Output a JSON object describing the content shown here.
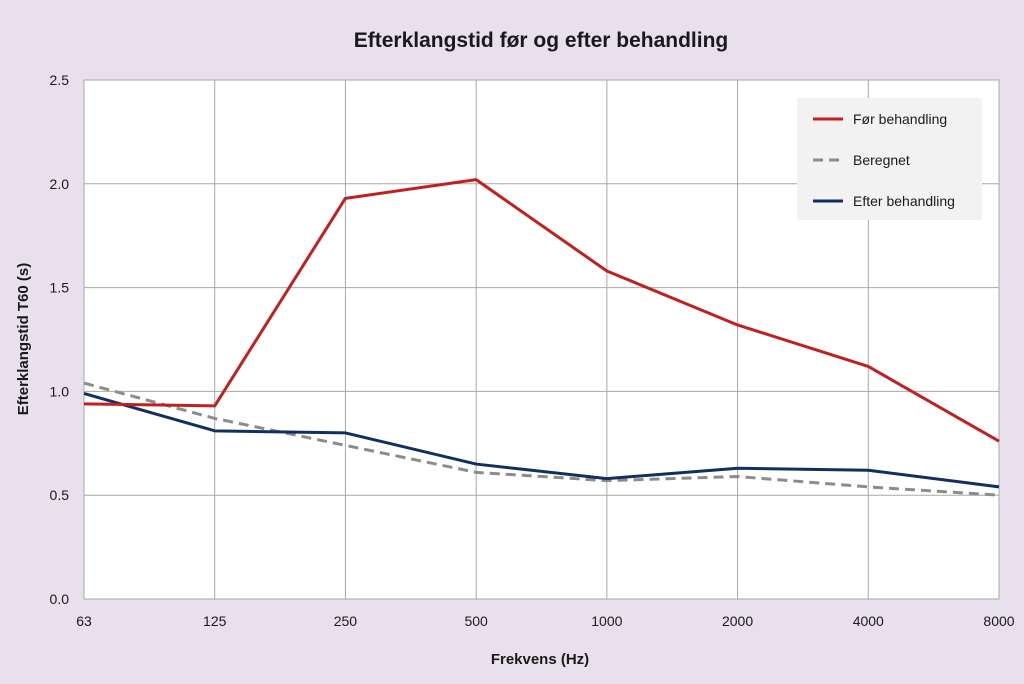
{
  "chart_data": {
    "type": "line",
    "title": "Efterklangstid før og efter behandling",
    "xlabel": "Frekvens (Hz)",
    "ylabel": "Efterklangstid T60 (s)",
    "categories": [
      "63",
      "125",
      "250",
      "500",
      "1000",
      "2000",
      "4000",
      "8000"
    ],
    "ylim": [
      0,
      2.5
    ],
    "yticks": [
      "0.0",
      "0.5",
      "1.0",
      "1.5",
      "2.0",
      "2.5"
    ],
    "ytick_values": [
      0,
      0.5,
      1.0,
      1.5,
      2.0,
      2.5
    ],
    "grid": true,
    "legend_position": "top-right",
    "series": [
      {
        "name": "Før behandling",
        "color": "#c0211f",
        "dashed": false,
        "values": [
          0.94,
          0.93,
          1.93,
          2.02,
          1.58,
          1.32,
          1.12,
          0.76
        ]
      },
      {
        "name": "Beregnet",
        "color": "#8c8c8c",
        "dashed": true,
        "values": [
          1.04,
          0.87,
          0.74,
          0.61,
          0.57,
          0.59,
          0.54,
          0.5
        ]
      },
      {
        "name": "Efter behandling",
        "color": "#12305f",
        "dashed": false,
        "values": [
          0.99,
          0.81,
          0.8,
          0.65,
          0.58,
          0.63,
          0.62,
          0.54
        ]
      }
    ]
  }
}
